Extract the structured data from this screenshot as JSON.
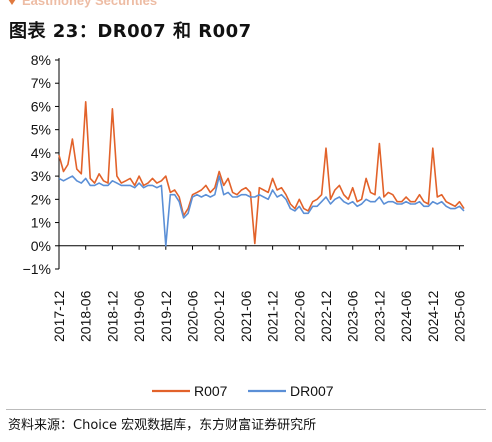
{
  "header": {
    "brand": "Eastmoney Securities",
    "figure_title": "图表 23：DR007 和 R007"
  },
  "source": {
    "text": "资料来源：Choice 宏观数据库，东方财富证券研究所"
  },
  "colors": {
    "R007": "#e2622a",
    "DR007": "#5b8fd6"
  },
  "chart_data": {
    "type": "line",
    "y_unit": "%",
    "ylim": [
      -1,
      8
    ],
    "yticks": [
      "8%",
      "7%",
      "6%",
      "5%",
      "4%",
      "3%",
      "2%",
      "1%",
      "0%",
      "−1%"
    ],
    "xticks": [
      "2017-12",
      "2018-06",
      "2018-12",
      "2019-06",
      "2019-12",
      "2020-06",
      "2020-12",
      "2021-06",
      "2021-12",
      "2022-06",
      "2022-12",
      "2023-06",
      "2023-12",
      "2024-06",
      "2024-12",
      "2025-06"
    ],
    "legend_position": "bottom",
    "grid": false,
    "series": [
      {
        "name": "R007",
        "color": "#e2622a",
        "x": [
          "2017-12",
          "2018-01",
          "2018-02",
          "2018-03",
          "2018-04",
          "2018-05",
          "2018-06",
          "2018-07",
          "2018-08",
          "2018-09",
          "2018-10",
          "2018-11",
          "2018-12",
          "2019-01",
          "2019-02",
          "2019-03",
          "2019-04",
          "2019-05",
          "2019-06",
          "2019-07",
          "2019-08",
          "2019-09",
          "2019-10",
          "2019-11",
          "2019-12",
          "2020-01",
          "2020-02",
          "2020-03",
          "2020-04",
          "2020-05",
          "2020-06",
          "2020-07",
          "2020-08",
          "2020-09",
          "2020-10",
          "2020-11",
          "2020-12",
          "2021-01",
          "2021-02",
          "2021-03",
          "2021-04",
          "2021-05",
          "2021-06",
          "2021-07",
          "2021-08",
          "2021-09",
          "2021-10",
          "2021-11",
          "2021-12",
          "2022-01",
          "2022-02",
          "2022-03",
          "2022-04",
          "2022-05",
          "2022-06",
          "2022-07",
          "2022-08",
          "2022-09",
          "2022-10",
          "2022-11",
          "2022-12",
          "2023-01",
          "2023-02",
          "2023-03",
          "2023-04",
          "2023-05",
          "2023-06",
          "2023-07",
          "2023-08",
          "2023-09",
          "2023-10",
          "2023-11",
          "2023-12",
          "2024-01",
          "2024-02",
          "2024-03",
          "2024-04",
          "2024-05",
          "2024-06",
          "2024-07",
          "2024-08",
          "2024-09",
          "2024-10",
          "2024-11",
          "2024-12",
          "2025-01",
          "2025-02",
          "2025-03",
          "2025-04",
          "2025-05",
          "2025-06",
          "2025-07"
        ],
        "y": [
          3.9,
          3.2,
          3.5,
          4.6,
          3.3,
          3.1,
          6.2,
          2.9,
          2.7,
          3.1,
          2.8,
          2.7,
          5.9,
          3.0,
          2.7,
          2.8,
          2.9,
          2.6,
          3.0,
          2.6,
          2.7,
          2.9,
          2.7,
          2.8,
          3.0,
          2.3,
          2.4,
          2.1,
          1.3,
          1.6,
          2.2,
          2.3,
          2.4,
          2.6,
          2.3,
          2.5,
          3.2,
          2.6,
          2.9,
          2.3,
          2.2,
          2.4,
          2.5,
          2.3,
          0.1,
          2.5,
          2.4,
          2.3,
          2.9,
          2.4,
          2.5,
          2.2,
          1.8,
          1.6,
          2.0,
          1.6,
          1.5,
          1.9,
          2.0,
          2.2,
          4.2,
          2.0,
          2.4,
          2.6,
          2.2,
          2.0,
          2.5,
          1.9,
          2.0,
          2.9,
          2.3,
          2.2,
          4.4,
          2.1,
          2.3,
          2.2,
          1.9,
          1.9,
          2.1,
          1.9,
          1.9,
          2.2,
          1.9,
          1.8,
          4.2,
          2.1,
          2.2,
          1.9,
          1.8,
          1.7,
          1.9,
          1.6
        ]
      },
      {
        "name": "DR007",
        "color": "#5b8fd6",
        "x": [
          "2017-12",
          "2018-01",
          "2018-02",
          "2018-03",
          "2018-04",
          "2018-05",
          "2018-06",
          "2018-07",
          "2018-08",
          "2018-09",
          "2018-10",
          "2018-11",
          "2018-12",
          "2019-01",
          "2019-02",
          "2019-03",
          "2019-04",
          "2019-05",
          "2019-06",
          "2019-07",
          "2019-08",
          "2019-09",
          "2019-10",
          "2019-11",
          "2019-12",
          "2020-01",
          "2020-02",
          "2020-03",
          "2020-04",
          "2020-05",
          "2020-06",
          "2020-07",
          "2020-08",
          "2020-09",
          "2020-10",
          "2020-11",
          "2020-12",
          "2021-01",
          "2021-02",
          "2021-03",
          "2021-04",
          "2021-05",
          "2021-06",
          "2021-07",
          "2021-08",
          "2021-09",
          "2021-10",
          "2021-11",
          "2021-12",
          "2022-01",
          "2022-02",
          "2022-03",
          "2022-04",
          "2022-05",
          "2022-06",
          "2022-07",
          "2022-08",
          "2022-09",
          "2022-10",
          "2022-11",
          "2022-12",
          "2023-01",
          "2023-02",
          "2023-03",
          "2023-04",
          "2023-05",
          "2023-06",
          "2023-07",
          "2023-08",
          "2023-09",
          "2023-10",
          "2023-11",
          "2023-12",
          "2024-01",
          "2024-02",
          "2024-03",
          "2024-04",
          "2024-05",
          "2024-06",
          "2024-07",
          "2024-08",
          "2024-09",
          "2024-10",
          "2024-11",
          "2024-12",
          "2025-01",
          "2025-02",
          "2025-03",
          "2025-04",
          "2025-05",
          "2025-06",
          "2025-07"
        ],
        "y": [
          2.9,
          2.8,
          2.9,
          3.0,
          2.8,
          2.7,
          2.9,
          2.6,
          2.6,
          2.7,
          2.6,
          2.6,
          2.8,
          2.7,
          2.6,
          2.6,
          2.6,
          2.5,
          2.7,
          2.5,
          2.6,
          2.6,
          2.5,
          2.6,
          0.0,
          2.2,
          2.2,
          1.9,
          1.2,
          1.4,
          2.1,
          2.2,
          2.1,
          2.2,
          2.1,
          2.2,
          3.0,
          2.2,
          2.3,
          2.1,
          2.1,
          2.2,
          2.2,
          2.1,
          2.1,
          2.2,
          2.1,
          2.0,
          2.4,
          2.1,
          2.2,
          2.0,
          1.6,
          1.5,
          1.7,
          1.4,
          1.4,
          1.7,
          1.7,
          1.9,
          2.1,
          1.8,
          2.0,
          2.1,
          1.9,
          1.8,
          1.9,
          1.7,
          1.8,
          2.0,
          1.9,
          1.9,
          2.1,
          1.8,
          1.9,
          1.9,
          1.8,
          1.8,
          1.9,
          1.8,
          1.8,
          1.9,
          1.7,
          1.7,
          1.9,
          1.8,
          1.9,
          1.7,
          1.6,
          1.6,
          1.7,
          1.5
        ]
      }
    ]
  }
}
